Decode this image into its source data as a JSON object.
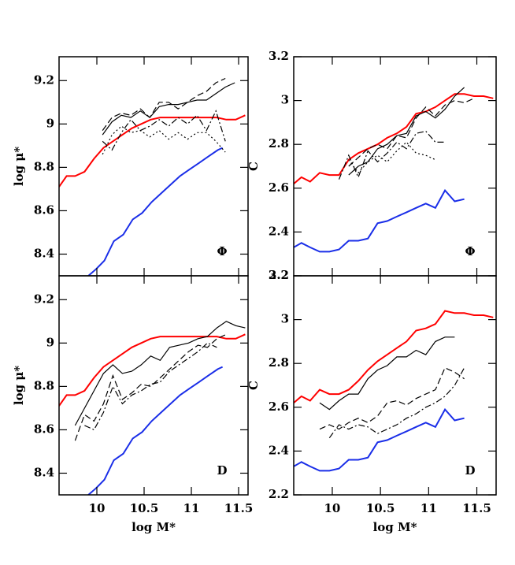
{
  "chart_data": [
    {
      "type": "line",
      "ylabel": "log μ*",
      "annotation": "Φ",
      "xlim": [
        9.6,
        11.6
      ],
      "ylim": [
        8.3,
        9.31
      ],
      "xticks": [
        10,
        10.5,
        11,
        11.5
      ],
      "yticks": [
        8.4,
        8.6,
        8.8,
        9,
        9.2
      ],
      "xticklabels": false,
      "series": [
        {
          "color": "#ff0000",
          "dash": "solid",
          "x": [
            9.6,
            9.68,
            9.77,
            9.87,
            9.97,
            10.07,
            10.17,
            10.27,
            10.37,
            10.47,
            10.57,
            10.67,
            10.77,
            10.87,
            10.97,
            11.07,
            11.17,
            11.27,
            11.37,
            11.47,
            11.57
          ],
          "values": [
            8.71,
            8.76,
            8.76,
            8.78,
            8.84,
            8.89,
            8.92,
            8.95,
            8.98,
            9.0,
            9.02,
            9.03,
            9.03,
            9.03,
            9.03,
            9.03,
            9.03,
            9.03,
            9.02,
            9.02,
            9.04
          ]
        },
        {
          "color": "#1a2ee8",
          "dash": "solid",
          "x": [
            9.91,
            9.99,
            10.08,
            10.18,
            10.28,
            10.38,
            10.48,
            10.58,
            10.68,
            10.78,
            10.88,
            10.98,
            11.08,
            11.18,
            11.28,
            11.33
          ],
          "values": [
            8.3,
            8.33,
            8.37,
            8.46,
            8.49,
            8.56,
            8.59,
            8.64,
            8.68,
            8.72,
            8.76,
            8.79,
            8.82,
            8.85,
            8.88,
            8.89
          ]
        },
        {
          "color": "#000000",
          "dash": "solid",
          "x": [
            10.06,
            10.16,
            10.26,
            10.36,
            10.46,
            10.56,
            10.66,
            10.76,
            10.86,
            10.96,
            11.06,
            11.16,
            11.26,
            11.36,
            11.46
          ],
          "values": [
            8.95,
            9.01,
            9.04,
            9.03,
            9.06,
            9.03,
            9.08,
            9.09,
            9.09,
            9.1,
            9.11,
            9.11,
            9.14,
            9.17,
            9.19
          ]
        },
        {
          "color": "#000000",
          "dash": "dashed",
          "x": [
            10.06,
            10.16,
            10.26,
            10.36,
            10.46,
            10.56,
            10.66,
            10.76,
            10.86,
            10.96,
            11.06,
            11.16,
            11.26,
            11.36
          ],
          "values": [
            8.97,
            9.03,
            9.05,
            9.04,
            9.07,
            9.03,
            9.1,
            9.1,
            9.07,
            9.1,
            9.13,
            9.15,
            9.19,
            9.21
          ]
        },
        {
          "color": "#000000",
          "dash": "dashdot",
          "x": [
            10.06,
            10.16,
            10.26,
            10.36,
            10.46,
            10.56,
            10.66,
            10.76,
            10.86,
            10.96,
            11.06,
            11.16,
            11.26,
            11.36
          ],
          "values": [
            8.92,
            8.88,
            8.96,
            9.02,
            8.97,
            8.99,
            9.02,
            8.99,
            9.03,
            9.0,
            9.04,
            8.97,
            9.06,
            8.92
          ]
        },
        {
          "color": "#000000",
          "dash": "dotted",
          "x": [
            10.06,
            10.16,
            10.26,
            10.36,
            10.46,
            10.56,
            10.66,
            10.76,
            10.86,
            10.96,
            11.06,
            11.16,
            11.26,
            11.36
          ],
          "values": [
            8.86,
            8.95,
            8.99,
            8.96,
            8.97,
            8.94,
            8.97,
            8.93,
            8.96,
            8.93,
            8.96,
            8.96,
            8.92,
            8.87
          ]
        }
      ]
    },
    {
      "type": "line",
      "ylabel": "C",
      "annotation": "Φ",
      "xlim": [
        9.6,
        11.7
      ],
      "ylim": [
        2.2,
        3.2
      ],
      "xticks": [
        10,
        10.5,
        11,
        11.5
      ],
      "yticks": [
        2.2,
        2.4,
        2.6,
        2.8,
        3,
        3.2
      ],
      "xticklabels": false,
      "series": [
        {
          "color": "#ff0000",
          "dash": "solid",
          "x": [
            9.6,
            9.68,
            9.77,
            9.87,
            9.97,
            10.07,
            10.17,
            10.27,
            10.37,
            10.47,
            10.57,
            10.67,
            10.77,
            10.87,
            10.97,
            11.07,
            11.17,
            11.27,
            11.37,
            11.47,
            11.57,
            11.67
          ],
          "values": [
            2.62,
            2.65,
            2.63,
            2.67,
            2.66,
            2.66,
            2.73,
            2.76,
            2.78,
            2.8,
            2.83,
            2.85,
            2.88,
            2.94,
            2.95,
            2.97,
            3.0,
            3.03,
            3.03,
            3.02,
            3.02,
            3.01
          ]
        },
        {
          "color": "#1a2ee8",
          "dash": "solid",
          "x": [
            9.6,
            9.68,
            9.77,
            9.87,
            9.97,
            10.07,
            10.17,
            10.27,
            10.37,
            10.47,
            10.57,
            10.67,
            10.77,
            10.87,
            10.97,
            11.07,
            11.17,
            11.27,
            11.37
          ],
          "values": [
            2.33,
            2.35,
            2.33,
            2.31,
            2.31,
            2.32,
            2.36,
            2.36,
            2.37,
            2.44,
            2.45,
            2.47,
            2.49,
            2.51,
            2.53,
            2.51,
            2.59,
            2.54,
            2.55
          ]
        },
        {
          "color": "#000000",
          "dash": "solid",
          "x": [
            10.17,
            10.27,
            10.37,
            10.47,
            10.57,
            10.67,
            10.77,
            10.87,
            10.97,
            11.07,
            11.17,
            11.27,
            11.37
          ],
          "values": [
            2.66,
            2.7,
            2.72,
            2.78,
            2.8,
            2.84,
            2.85,
            2.93,
            2.95,
            2.92,
            2.96,
            3.02,
            3.06
          ]
        },
        {
          "color": "#000000",
          "dash": "dashed",
          "x": [
            10.17,
            10.27,
            10.37,
            10.47,
            10.57,
            10.67,
            10.77,
            10.87,
            10.97,
            11.07,
            11.17,
            11.27,
            11.37,
            11.47
          ],
          "values": [
            2.7,
            2.74,
            2.78,
            2.8,
            2.78,
            2.84,
            2.83,
            2.92,
            2.97,
            2.93,
            2.98,
            3.0,
            2.99,
            3.01
          ]
        },
        {
          "color": "#000000",
          "dash": "dashdot",
          "x": [
            10.07,
            10.17,
            10.27,
            10.37,
            10.47,
            10.57,
            10.67,
            10.77,
            10.87,
            10.97,
            11.07,
            11.17
          ],
          "values": [
            2.64,
            2.75,
            2.65,
            2.77,
            2.72,
            2.76,
            2.81,
            2.78,
            2.85,
            2.86,
            2.81,
            2.81
          ]
        },
        {
          "color": "#000000",
          "dash": "dotted",
          "x": [
            10.17,
            10.27,
            10.37,
            10.47,
            10.57,
            10.67,
            10.77,
            10.87,
            10.97,
            11.07
          ],
          "values": [
            2.73,
            2.67,
            2.72,
            2.75,
            2.72,
            2.77,
            2.81,
            2.76,
            2.75,
            2.73
          ]
        }
      ]
    },
    {
      "type": "line",
      "ylabel": "log μ*",
      "xlabel": "log M*",
      "annotation": "D",
      "xlim": [
        9.6,
        11.6
      ],
      "ylim": [
        8.3,
        9.31
      ],
      "xticks": [
        10,
        10.5,
        11,
        11.5
      ],
      "yticks": [
        8.4,
        8.6,
        8.8,
        9,
        9.2
      ],
      "xticklabels": true,
      "series": [
        {
          "color": "#ff0000",
          "dash": "solid",
          "x": [
            9.6,
            9.68,
            9.77,
            9.87,
            9.97,
            10.07,
            10.17,
            10.27,
            10.37,
            10.47,
            10.57,
            10.67,
            10.77,
            10.87,
            10.97,
            11.07,
            11.17,
            11.27,
            11.37,
            11.47,
            11.57
          ],
          "values": [
            8.71,
            8.76,
            8.76,
            8.78,
            8.84,
            8.89,
            8.92,
            8.95,
            8.98,
            9.0,
            9.02,
            9.03,
            9.03,
            9.03,
            9.03,
            9.03,
            9.03,
            9.03,
            9.02,
            9.02,
            9.04
          ]
        },
        {
          "color": "#1a2ee8",
          "dash": "solid",
          "x": [
            9.91,
            9.99,
            10.08,
            10.18,
            10.28,
            10.38,
            10.48,
            10.58,
            10.68,
            10.78,
            10.88,
            10.98,
            11.08,
            11.18,
            11.28,
            11.33
          ],
          "values": [
            8.3,
            8.33,
            8.37,
            8.46,
            8.49,
            8.56,
            8.59,
            8.64,
            8.68,
            8.72,
            8.76,
            8.79,
            8.82,
            8.85,
            8.88,
            8.89
          ]
        },
        {
          "color": "#000000",
          "dash": "solid",
          "x": [
            9.77,
            9.87,
            9.97,
            10.07,
            10.17,
            10.27,
            10.37,
            10.47,
            10.57,
            10.67,
            10.77,
            10.87,
            10.97,
            11.07,
            11.17,
            11.27,
            11.37,
            11.47,
            11.57
          ],
          "values": [
            8.62,
            8.7,
            8.78,
            8.86,
            8.9,
            8.86,
            8.87,
            8.9,
            8.94,
            8.92,
            8.98,
            8.99,
            9.0,
            9.02,
            9.03,
            9.07,
            9.1,
            9.08,
            9.07
          ]
        },
        {
          "color": "#000000",
          "dash": "dashed",
          "x": [
            9.77,
            9.87,
            9.97,
            10.07,
            10.17,
            10.27,
            10.37,
            10.47,
            10.57,
            10.67,
            10.77,
            10.87,
            10.97,
            11.07,
            11.17,
            11.27,
            11.37
          ],
          "values": [
            8.55,
            8.67,
            8.64,
            8.72,
            8.85,
            8.74,
            8.77,
            8.81,
            8.8,
            8.84,
            8.88,
            8.92,
            8.96,
            8.99,
            8.98,
            9.02,
            9.04
          ]
        },
        {
          "color": "#000000",
          "dash": "dashdot",
          "x": [
            9.87,
            9.97,
            10.07,
            10.17,
            10.27,
            10.37,
            10.47,
            10.57,
            10.67,
            10.77,
            10.87,
            10.97,
            11.07,
            11.17,
            11.27
          ],
          "values": [
            8.62,
            8.6,
            8.68,
            8.8,
            8.72,
            8.76,
            8.78,
            8.81,
            8.82,
            8.87,
            8.9,
            8.93,
            8.96,
            9.0,
            8.98
          ]
        }
      ]
    },
    {
      "type": "line",
      "ylabel": "C",
      "xlabel": "log M*",
      "annotation": "D",
      "xlim": [
        9.6,
        11.7
      ],
      "ylim": [
        2.2,
        3.2
      ],
      "xticks": [
        10,
        10.5,
        11,
        11.5
      ],
      "yticks": [
        2.2,
        2.4,
        2.6,
        2.8,
        3,
        3.2
      ],
      "xticklabels": true,
      "series": [
        {
          "color": "#ff0000",
          "dash": "solid",
          "x": [
            9.6,
            9.68,
            9.77,
            9.87,
            9.97,
            10.07,
            10.17,
            10.27,
            10.37,
            10.47,
            10.57,
            10.67,
            10.77,
            10.87,
            10.97,
            11.07,
            11.17,
            11.27,
            11.37,
            11.47,
            11.57,
            11.67
          ],
          "values": [
            2.62,
            2.65,
            2.63,
            2.68,
            2.66,
            2.66,
            2.68,
            2.72,
            2.77,
            2.81,
            2.84,
            2.87,
            2.9,
            2.95,
            2.96,
            2.98,
            3.04,
            3.03,
            3.03,
            3.02,
            3.02,
            3.01
          ]
        },
        {
          "color": "#1a2ee8",
          "dash": "solid",
          "x": [
            9.6,
            9.68,
            9.77,
            9.87,
            9.97,
            10.07,
            10.17,
            10.27,
            10.37,
            10.47,
            10.57,
            10.67,
            10.77,
            10.87,
            10.97,
            11.07,
            11.17,
            11.27,
            11.37
          ],
          "values": [
            2.33,
            2.35,
            2.33,
            2.31,
            2.31,
            2.32,
            2.36,
            2.36,
            2.37,
            2.44,
            2.45,
            2.47,
            2.49,
            2.51,
            2.53,
            2.51,
            2.59,
            2.54,
            2.55
          ]
        },
        {
          "color": "#000000",
          "dash": "solid",
          "x": [
            9.87,
            9.97,
            10.07,
            10.17,
            10.27,
            10.37,
            10.47,
            10.57,
            10.67,
            10.77,
            10.87,
            10.97,
            11.07,
            11.17,
            11.27
          ],
          "values": [
            2.62,
            2.59,
            2.63,
            2.66,
            2.66,
            2.73,
            2.77,
            2.79,
            2.83,
            2.83,
            2.86,
            2.84,
            2.9,
            2.92,
            2.92
          ]
        },
        {
          "color": "#000000",
          "dash": "dashed",
          "x": [
            9.87,
            9.97,
            10.07,
            10.17,
            10.27,
            10.37,
            10.47,
            10.57,
            10.67,
            10.77,
            10.87,
            10.97,
            11.07,
            11.17,
            11.27,
            11.37
          ],
          "values": [
            2.5,
            2.52,
            2.5,
            2.53,
            2.55,
            2.53,
            2.56,
            2.62,
            2.63,
            2.61,
            2.64,
            2.66,
            2.68,
            2.78,
            2.76,
            2.73
          ]
        },
        {
          "color": "#000000",
          "dash": "dashdot",
          "x": [
            9.97,
            10.07,
            10.17,
            10.27,
            10.37,
            10.47,
            10.57,
            10.67,
            10.77,
            10.87,
            10.97,
            11.07,
            11.17,
            11.27,
            11.37
          ],
          "values": [
            2.46,
            2.52,
            2.5,
            2.52,
            2.51,
            2.48,
            2.5,
            2.52,
            2.55,
            2.57,
            2.6,
            2.62,
            2.65,
            2.7,
            2.78
          ]
        }
      ]
    }
  ]
}
